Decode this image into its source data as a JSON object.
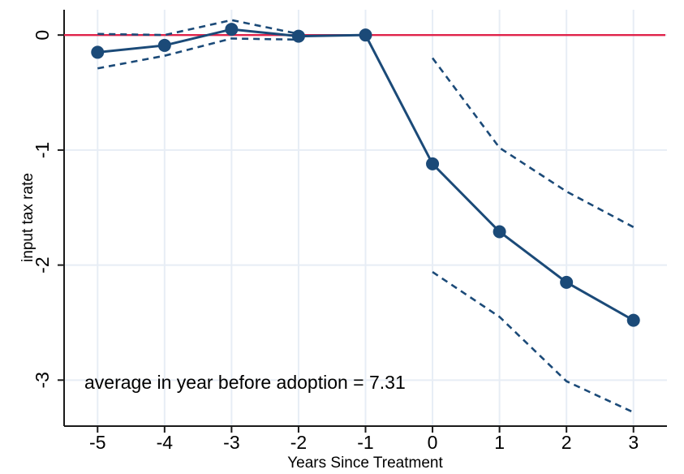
{
  "chart_data": {
    "type": "line",
    "title": "",
    "xlabel": "Years Since Treatment",
    "ylabel": "input tax rate",
    "annotation": "average in year before adoption = 7.31",
    "x_ticks": [
      -5,
      -4,
      -3,
      -2,
      -1,
      0,
      1,
      2,
      3
    ],
    "y_ticks": [
      0,
      -1,
      -2,
      -3
    ],
    "xlim": [
      -5.5,
      3.5
    ],
    "ylim": [
      -3.4,
      0.22
    ],
    "grid": true,
    "legend_position": "none",
    "reference_line_y": 0,
    "series": [
      {
        "name": "point-estimate",
        "style": "solid",
        "marker": "circle",
        "x": [
          -5,
          -4,
          -3,
          -2,
          -1,
          0,
          1,
          2,
          3
        ],
        "y": [
          -0.15,
          -0.09,
          0.05,
          -0.01,
          0,
          -1.12,
          -1.71,
          -2.15,
          -2.48
        ]
      },
      {
        "name": "ci-upper-95",
        "style": "dashed",
        "marker": "none",
        "segments": [
          {
            "x": [
              -5,
              -4,
              -3,
              -2
            ],
            "y": [
              0.01,
              0.0,
              0.13,
              0.01
            ]
          },
          {
            "x": [
              0,
              1,
              2,
              3
            ],
            "y": [
              -0.2,
              -0.98,
              -1.36,
              -1.67
            ]
          }
        ]
      },
      {
        "name": "ci-lower-95",
        "style": "dashed",
        "marker": "none",
        "segments": [
          {
            "x": [
              -5,
              -4,
              -3,
              -2
            ],
            "y": [
              -0.29,
              -0.18,
              -0.03,
              -0.04
            ]
          },
          {
            "x": [
              0,
              1,
              2,
              3
            ],
            "y": [
              -2.06,
              -2.45,
              -3.01,
              -3.28
            ]
          }
        ]
      }
    ],
    "colors": {
      "series": "#1b4a78",
      "reference": "#e0234a",
      "grid": "#e7edf5",
      "axis": "#1a1a1a",
      "text": "#000000",
      "background": "#ffffff"
    }
  }
}
